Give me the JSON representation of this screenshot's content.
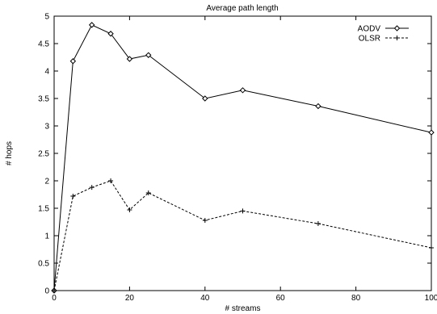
{
  "chart_data": {
    "type": "line",
    "title": "Average path length",
    "xlabel": "# streams",
    "ylabel": "# hops",
    "xlim": [
      0,
      100
    ],
    "ylim": [
      0,
      5
    ],
    "xticks": [
      0,
      20,
      40,
      60,
      80,
      100
    ],
    "yticks": [
      0,
      0.5,
      1,
      1.5,
      2,
      2.5,
      3,
      3.5,
      4,
      4.5,
      5
    ],
    "grid": false,
    "legend_position": "top-right",
    "series": [
      {
        "name": "AODV",
        "style": "solid",
        "marker": "diamond",
        "color": "#000000",
        "x": [
          0,
          5,
          10,
          15,
          20,
          25,
          40,
          50,
          70,
          100
        ],
        "y": [
          0,
          4.18,
          4.84,
          4.68,
          4.22,
          4.29,
          3.5,
          3.65,
          3.36,
          2.88
        ]
      },
      {
        "name": "OLSR",
        "style": "dashed",
        "marker": "plus",
        "color": "#000000",
        "x": [
          0,
          5,
          10,
          15,
          20,
          25,
          40,
          50,
          70,
          100
        ],
        "y": [
          0,
          1.72,
          1.88,
          2.0,
          1.47,
          1.78,
          1.28,
          1.45,
          1.22,
          0.78
        ]
      }
    ]
  }
}
